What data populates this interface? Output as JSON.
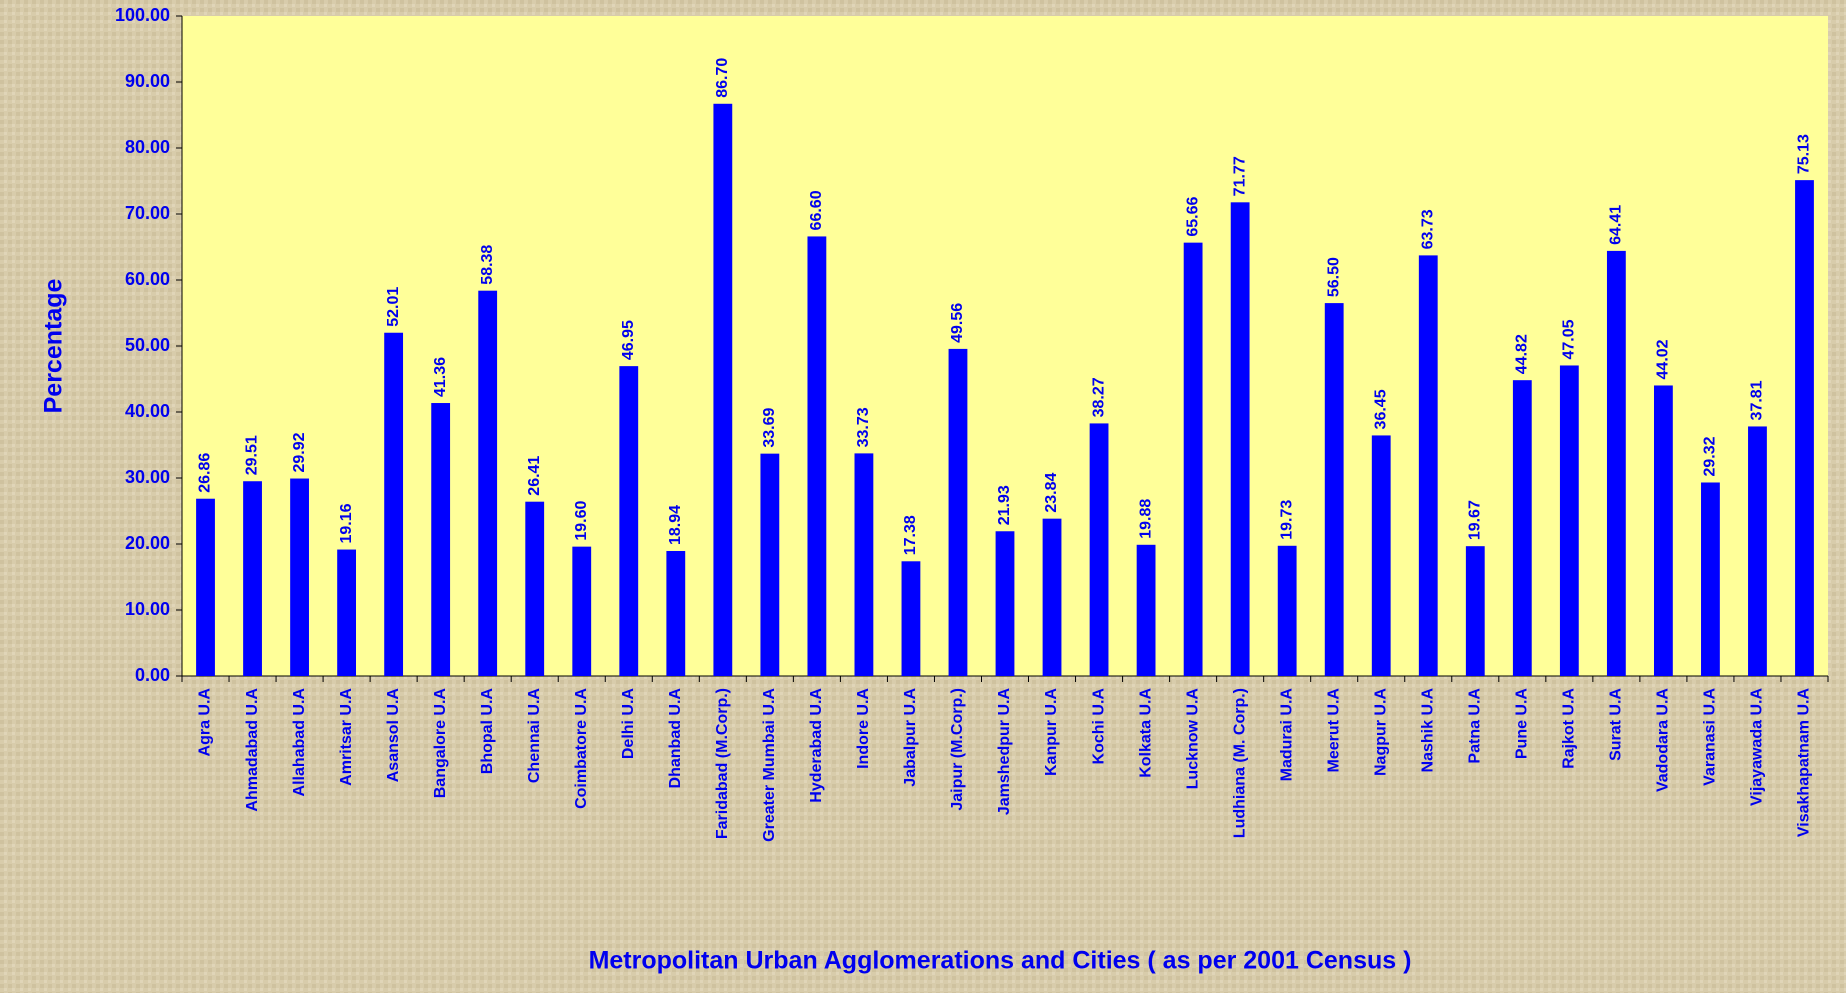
{
  "chart_data": {
    "type": "bar",
    "x_label": "Metropolitan Urban Agglomerations and Cities ( as per 2001 Census )",
    "y_label": "Percentage",
    "categories": [
      "Agra U.A",
      "Ahmadabad U.A",
      "Allahabad U.A",
      "Amritsar U.A",
      "Asansol U.A",
      "Bangalore U.A",
      "Bhopal U.A",
      "Chennai U.A",
      "Coimbatore U.A",
      "Delhi U.A",
      "Dhanbad U.A",
      "Faridabad (M.Corp.)",
      "Greater Mumbai U.A",
      "Hyderabad U.A",
      "Indore U.A",
      "Jabalpur U.A",
      "Jaipur (M.Corp.)",
      "Jamshedpur U.A",
      "Kanpur U.A",
      "Kochi U.A",
      "Kolkata U.A",
      "Lucknow U.A",
      "Ludhiana (M. Corp.)",
      "Madurai U.A",
      "Meerut U.A",
      "Nagpur U.A",
      "Nashik U.A",
      "Patna U.A",
      "Pune U.A",
      "Rajkot U.A",
      "Surat U.A",
      "Vadodara U.A",
      "Varanasi U.A",
      "Vijayawada U.A",
      "Visakhapatnam U.A"
    ],
    "values": [
      26.86,
      29.51,
      29.92,
      19.16,
      52.01,
      41.36,
      58.38,
      26.41,
      19.6,
      46.95,
      18.94,
      86.7,
      33.69,
      66.6,
      33.73,
      17.38,
      49.56,
      21.93,
      23.84,
      38.27,
      19.88,
      65.66,
      71.77,
      19.73,
      56.5,
      36.45,
      63.73,
      19.67,
      44.82,
      47.05,
      64.41,
      44.02,
      29.32,
      37.81,
      75.13
    ],
    "value_labels": [
      "26.86",
      "29.51",
      "29.92",
      "19.16",
      "52.01",
      "41.36",
      "58.38",
      "26.41",
      "19.60",
      "46.95",
      "18.94",
      "86.70",
      "33.69",
      "66.60",
      "33.73",
      "17.38",
      "49.56",
      "21.93",
      "23.84",
      "38.27",
      "19.88",
      "65.66",
      "71.77",
      "19.73",
      "56.50",
      "36.45",
      "63.73",
      "19.67",
      "44.82",
      "47.05",
      "64.41",
      "44.02",
      "29.32",
      "37.81",
      "75.13"
    ],
    "color": "#0000ff",
    "ylim": [
      0,
      100
    ],
    "yticks": [
      {
        "value": 0,
        "label": "0.00"
      },
      {
        "value": 10,
        "label": "10.00"
      },
      {
        "value": 20,
        "label": "20.00"
      },
      {
        "value": 30,
        "label": "30.00"
      },
      {
        "value": 40,
        "label": "40.00"
      },
      {
        "value": 50,
        "label": "50.00"
      },
      {
        "value": 60,
        "label": "60.00"
      },
      {
        "value": 70,
        "label": "70.00"
      },
      {
        "value": 80,
        "label": "80.00"
      },
      {
        "value": 90,
        "label": "90.00"
      },
      {
        "value": 100,
        "label": "100.00"
      }
    ],
    "grid": false
  }
}
